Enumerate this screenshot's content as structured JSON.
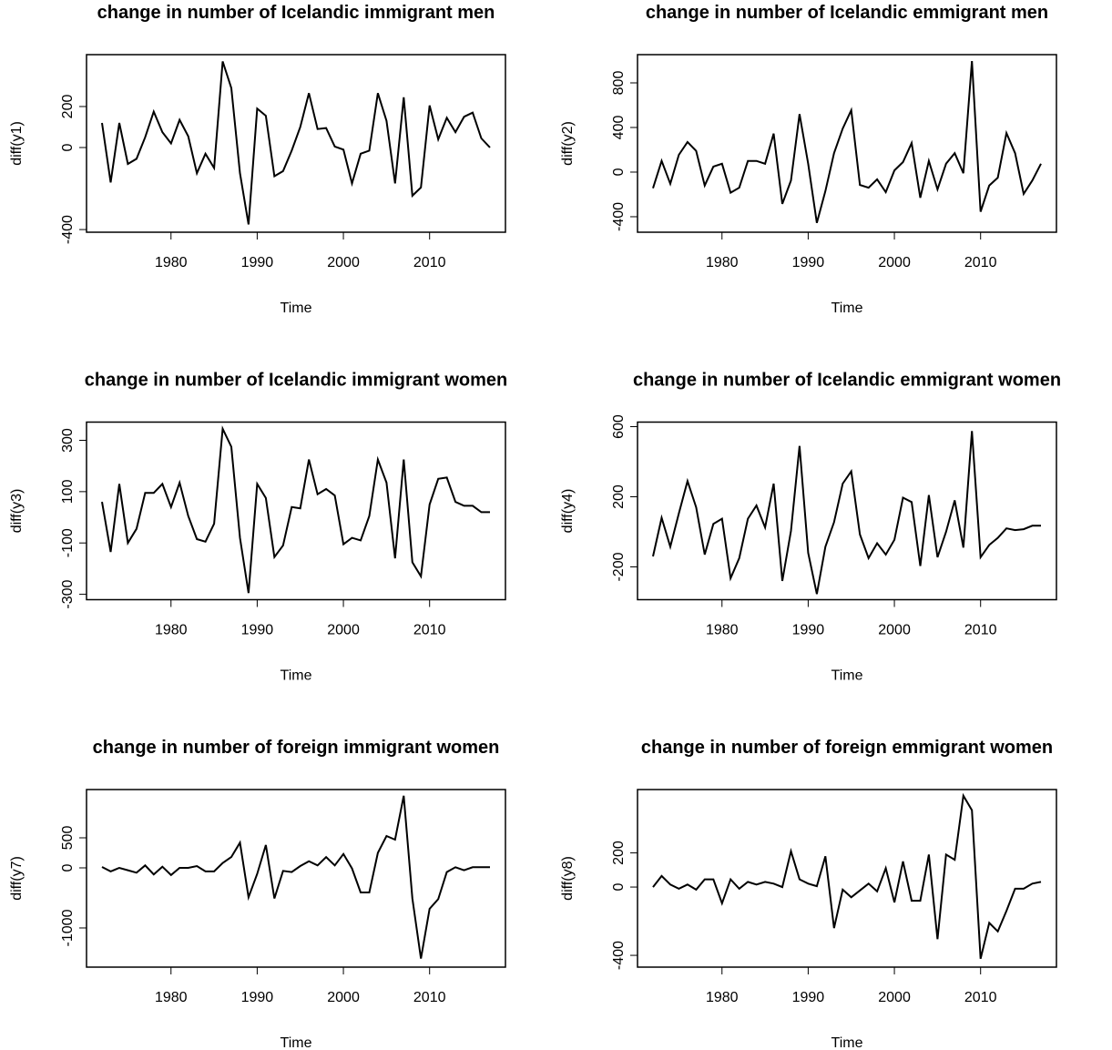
{
  "chart_data": [
    {
      "type": "line",
      "title": "change in number of Icelandic immigrant men",
      "xlabel": "Time",
      "ylabel": "diff(y1)",
      "color": "#000000",
      "x": [
        1972,
        1973,
        1974,
        1975,
        1976,
        1977,
        1978,
        1979,
        1980,
        1981,
        1982,
        1983,
        1984,
        1985,
        1986,
        1987,
        1988,
        1989,
        1990,
        1991,
        1992,
        1993,
        1994,
        1995,
        1996,
        1997,
        1998,
        1999,
        2000,
        2001,
        2002,
        2003,
        2004,
        2005,
        2006,
        2007,
        2008,
        2009,
        2010,
        2011,
        2012,
        2013,
        2014,
        2015,
        2016,
        2017
      ],
      "values": [
        120,
        -170,
        120,
        -80,
        -55,
        50,
        175,
        75,
        20,
        135,
        55,
        -125,
        -30,
        -100,
        420,
        290,
        -125,
        -375,
        190,
        155,
        -140,
        -115,
        -15,
        100,
        265,
        90,
        95,
        5,
        -10,
        -175,
        -30,
        -15,
        265,
        130,
        -175,
        245,
        -235,
        -195,
        205,
        40,
        145,
        75,
        150,
        170,
        45,
        0
      ],
      "xlim": [
        1970.2,
        2018.8
      ],
      "xticks": [
        1980,
        1990,
        2000,
        2010
      ],
      "ylim": [
        -413,
        453
      ],
      "yticks": [
        -400,
        0,
        200
      ]
    },
    {
      "type": "line",
      "title": "change in number of Icelandic emmigrant men",
      "xlabel": "Time",
      "ylabel": "diff(y2)",
      "color": "#000000",
      "x": [
        1972,
        1973,
        1974,
        1975,
        1976,
        1977,
        1978,
        1979,
        1980,
        1981,
        1982,
        1983,
        1984,
        1985,
        1986,
        1987,
        1988,
        1989,
        1990,
        1991,
        1992,
        1993,
        1994,
        1995,
        1996,
        1997,
        1998,
        1999,
        2000,
        2001,
        2002,
        2003,
        2004,
        2005,
        2006,
        2007,
        2008,
        2009,
        2010,
        2011,
        2012,
        2013,
        2014,
        2015,
        2016,
        2017
      ],
      "values": [
        -145,
        100,
        -105,
        155,
        270,
        190,
        -120,
        50,
        75,
        -185,
        -140,
        100,
        100,
        75,
        345,
        -285,
        -75,
        520,
        75,
        -455,
        -170,
        170,
        390,
        555,
        -115,
        -140,
        -65,
        -180,
        15,
        90,
        260,
        -230,
        100,
        -155,
        75,
        170,
        -10,
        995,
        -355,
        -120,
        -50,
        350,
        170,
        -195,
        -75,
        75
      ],
      "xlim": [
        1970.2,
        2018.8
      ],
      "xticks": [
        1980,
        1990,
        2000,
        2010
      ],
      "ylim": [
        -539,
        1053
      ],
      "yticks": [
        -400,
        0,
        400,
        800
      ]
    },
    {
      "type": "line",
      "title": "change in number of Icelandic immigrant women",
      "xlabel": "Time",
      "ylabel": "diff(y3)",
      "color": "#000000",
      "x": [
        1972,
        1973,
        1974,
        1975,
        1976,
        1977,
        1978,
        1979,
        1980,
        1981,
        1982,
        1983,
        1984,
        1985,
        1986,
        1987,
        1988,
        1989,
        1990,
        1991,
        1992,
        1993,
        1994,
        1995,
        1996,
        1997,
        1998,
        1999,
        2000,
        2001,
        2002,
        2003,
        2004,
        2005,
        2006,
        2007,
        2008,
        2009,
        2010,
        2011,
        2012,
        2013,
        2014,
        2015,
        2016,
        2017
      ],
      "values": [
        60,
        -135,
        130,
        -100,
        -45,
        95,
        95,
        130,
        40,
        135,
        5,
        -85,
        -95,
        -25,
        345,
        275,
        -80,
        -295,
        130,
        75,
        -155,
        -110,
        40,
        35,
        225,
        90,
        110,
        85,
        -105,
        -80,
        -90,
        5,
        225,
        135,
        -160,
        225,
        -175,
        -230,
        50,
        150,
        155,
        60,
        45,
        45,
        20,
        20
      ],
      "xlim": [
        1970.2,
        2018.8
      ],
      "xticks": [
        1980,
        1990,
        2000,
        2010
      ],
      "ylim": [
        -321,
        371
      ],
      "yticks": [
        -300,
        -100,
        100,
        300
      ]
    },
    {
      "type": "line",
      "title": "change in number of Icelandic emmigrant women",
      "xlabel": "Time",
      "ylabel": "diff(y4)",
      "color": "#000000",
      "x": [
        1972,
        1973,
        1974,
        1975,
        1976,
        1977,
        1978,
        1979,
        1980,
        1981,
        1982,
        1983,
        1984,
        1985,
        1986,
        1987,
        1988,
        1989,
        1990,
        1991,
        1992,
        1993,
        1994,
        1995,
        1996,
        1997,
        1998,
        1999,
        2000,
        2001,
        2002,
        2003,
        2004,
        2005,
        2006,
        2007,
        2008,
        2009,
        2010,
        2011,
        2012,
        2013,
        2014,
        2015,
        2016,
        2017
      ],
      "values": [
        -140,
        80,
        -85,
        105,
        290,
        140,
        -130,
        45,
        75,
        -265,
        -150,
        75,
        150,
        25,
        275,
        -280,
        5,
        490,
        -120,
        -355,
        -85,
        55,
        275,
        345,
        -15,
        -150,
        -65,
        -130,
        -45,
        195,
        170,
        -195,
        210,
        -145,
        0,
        180,
        -90,
        575,
        -145,
        -75,
        -35,
        20,
        10,
        15,
        35,
        35
      ],
      "xlim": [
        1970.2,
        2018.8
      ],
      "xticks": [
        1980,
        1990,
        2000,
        2010
      ],
      "ylim": [
        -387,
        626
      ],
      "yticks": [
        -200,
        200,
        600
      ]
    },
    {
      "type": "line",
      "title": "change in number of foreign immigrant women",
      "xlabel": "Time",
      "ylabel": "diff(y7)",
      "color": "#000000",
      "x": [
        1972,
        1973,
        1974,
        1975,
        1976,
        1977,
        1978,
        1979,
        1980,
        1981,
        1982,
        1983,
        1984,
        1985,
        1986,
        1987,
        1988,
        1989,
        1990,
        1991,
        1992,
        1993,
        1994,
        1995,
        1996,
        1997,
        1998,
        1999,
        2000,
        2001,
        2002,
        2003,
        2004,
        2005,
        2006,
        2007,
        2008,
        2009,
        2010,
        2011,
        2012,
        2013,
        2014,
        2015,
        2016,
        2017
      ],
      "values": [
        15,
        -60,
        0,
        -40,
        -80,
        40,
        -110,
        20,
        -120,
        0,
        0,
        30,
        -60,
        -60,
        80,
        180,
        420,
        -490,
        -100,
        380,
        -510,
        -50,
        -70,
        30,
        110,
        40,
        180,
        40,
        230,
        -10,
        -410,
        -410,
        250,
        530,
        470,
        1200,
        -510,
        -1510,
        -680,
        -520,
        -70,
        10,
        -40,
        10,
        10,
        10
      ],
      "xlim": [
        1970.2,
        2018.8
      ],
      "xticks": [
        1980,
        1990,
        2000,
        2010
      ],
      "ylim": [
        -1652,
        1303
      ],
      "yticks": [
        -1000,
        0,
        500
      ]
    },
    {
      "type": "line",
      "title": "change in number of foreign emmigrant women",
      "xlabel": "Time",
      "ylabel": "diff(y8)",
      "color": "#000000",
      "x": [
        1972,
        1973,
        1974,
        1975,
        1976,
        1977,
        1978,
        1979,
        1980,
        1981,
        1982,
        1983,
        1984,
        1985,
        1986,
        1987,
        1988,
        1989,
        1990,
        1991,
        1992,
        1993,
        1994,
        1995,
        1996,
        1997,
        1998,
        1999,
        2000,
        2001,
        2002,
        2003,
        2004,
        2005,
        2006,
        2007,
        2008,
        2009,
        2010,
        2011,
        2012,
        2013,
        2014,
        2015,
        2016,
        2017
      ],
      "values": [
        0,
        65,
        15,
        -10,
        15,
        -15,
        45,
        45,
        -95,
        45,
        -10,
        30,
        15,
        30,
        20,
        0,
        210,
        45,
        20,
        5,
        180,
        -240,
        -15,
        -60,
        -20,
        20,
        -25,
        110,
        -90,
        150,
        -80,
        -80,
        190,
        -305,
        190,
        160,
        535,
        450,
        -420,
        -210,
        -260,
        -140,
        -10,
        -10,
        20,
        30
      ],
      "xlim": [
        1970.2,
        2018.8
      ],
      "xticks": [
        1980,
        1990,
        2000,
        2010
      ],
      "ylim": [
        -469,
        571
      ],
      "yticks": [
        -400,
        0,
        200
      ]
    }
  ]
}
